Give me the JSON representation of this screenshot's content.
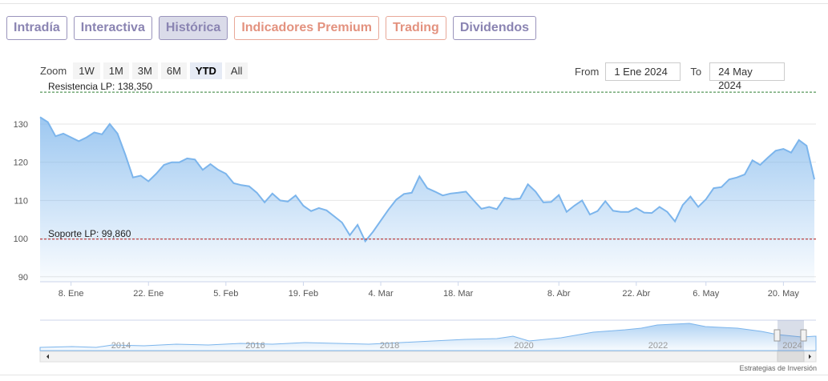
{
  "tabs": [
    "Intradía",
    "Interactiva",
    "Histórica",
    "Indicadores Premium",
    "Trading",
    "Dividendos"
  ],
  "selected_tab": "Histórica",
  "zoom": {
    "label": "Zoom",
    "buttons": [
      "1W",
      "1M",
      "3M",
      "6M",
      "YTD",
      "All"
    ],
    "selected": "YTD"
  },
  "range": {
    "from_label": "From",
    "from": "1 Ene 2024",
    "to_label": "To",
    "to": "24 May 2024"
  },
  "chart_data": {
    "type": "area",
    "categories": [
      null,
      null,
      null,
      null,
      "8. Ene",
      null,
      null,
      null,
      null,
      null,
      null,
      null,
      null,
      null,
      "22. Ene",
      null,
      null,
      null,
      null,
      null,
      null,
      null,
      null,
      null,
      "5. Feb",
      null,
      null,
      null,
      null,
      null,
      null,
      null,
      null,
      null,
      "19. Feb",
      null,
      null,
      null,
      null,
      null,
      null,
      null,
      null,
      null,
      "4. Mar",
      null,
      null,
      null,
      null,
      null,
      null,
      null,
      null,
      null,
      "18. Mar",
      null,
      null,
      null,
      null,
      null,
      null,
      null,
      null,
      null,
      null,
      null,
      null,
      "8. Abr",
      null,
      null,
      null,
      null,
      null,
      null,
      null,
      null,
      null,
      "22. Abr",
      null,
      null,
      null,
      null,
      null,
      null,
      null,
      null,
      "6. May",
      null,
      null,
      null,
      null,
      null,
      null,
      null,
      null,
      null,
      "20. May",
      null,
      null,
      null,
      null
    ],
    "values": [
      131.8,
      130.5,
      126.8,
      127.5,
      126.5,
      125.5,
      126.5,
      127.8,
      127.3,
      130.0,
      127.5,
      122.0,
      116.0,
      116.5,
      115.0,
      117.0,
      119.3,
      120.0,
      120.0,
      121.0,
      120.7,
      118.0,
      119.5,
      118.0,
      117.0,
      114.5,
      114.0,
      113.7,
      112.0,
      109.5,
      111.8,
      110.0,
      109.7,
      111.3,
      108.6,
      107.2,
      108.0,
      107.4,
      105.8,
      104.2,
      100.9,
      103.6,
      99.3,
      101.8,
      104.7,
      107.6,
      110.2,
      111.7,
      112.0,
      116.3,
      113.2,
      112.3,
      111.3,
      111.8,
      112.0,
      112.3,
      110.0,
      107.8,
      108.3,
      107.7,
      110.7,
      110.3,
      110.5,
      114.2,
      112.3,
      109.5,
      109.6,
      111.4,
      107.0,
      108.6,
      110.0,
      106.3,
      107.2,
      109.8,
      107.3,
      107.0,
      107.0,
      108.0,
      106.8,
      106.7,
      108.3,
      107.0,
      104.5,
      108.8,
      111.0,
      108.3,
      110.3,
      113.2,
      113.5,
      115.5,
      116.0,
      116.8,
      120.5,
      119.3,
      121.2,
      123.0,
      123.5,
      122.5,
      125.8,
      124.3,
      115.5
    ],
    "color": "#7cb5ec",
    "ylim": [
      88.7,
      139
    ],
    "yticks": [
      90,
      100,
      110,
      120,
      130
    ],
    "grid": true,
    "annotations": [
      {
        "label": "Resistencia LP: 138,350",
        "value": 138.35,
        "color": "#2e7d32"
      },
      {
        "label": "Soporte LP: 99,860",
        "value": 99.86,
        "color": "#b71c1c"
      }
    ]
  },
  "navigator": {
    "years": [
      "2014",
      "2016",
      "2018",
      "2020",
      "2022",
      "2024"
    ]
  },
  "footer": "Estrategias de Inversión"
}
